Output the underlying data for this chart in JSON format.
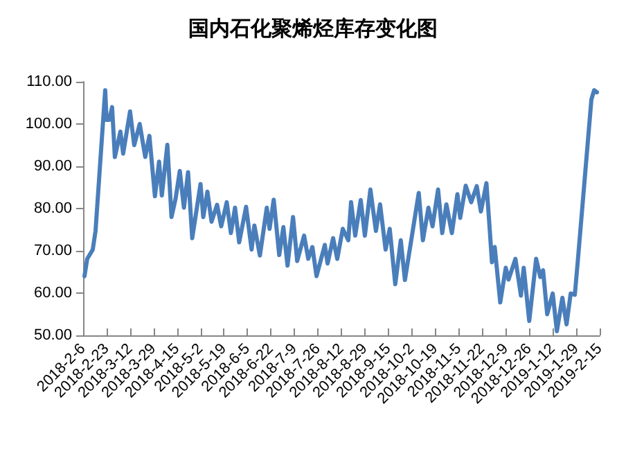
{
  "chart_data": {
    "type": "line",
    "title": "国内石化聚烯烃库存变化图",
    "x": [
      "2018-02-07",
      "2018-02-09",
      "2018-02-13",
      "2018-02-15",
      "2018-02-22",
      "2018-02-23",
      "2018-02-25",
      "2018-02-27",
      "2018-03-01",
      "2018-03-05",
      "2018-03-07",
      "2018-03-12",
      "2018-03-15",
      "2018-03-19",
      "2018-03-23",
      "2018-03-26",
      "2018-03-30",
      "2018-04-02",
      "2018-04-04",
      "2018-04-08",
      "2018-04-11",
      "2018-04-14",
      "2018-04-17",
      "2018-04-20",
      "2018-04-23",
      "2018-04-26",
      "2018-05-02",
      "2018-05-04",
      "2018-05-07",
      "2018-05-10",
      "2018-05-14",
      "2018-05-17",
      "2018-05-21",
      "2018-05-24",
      "2018-05-27",
      "2018-05-30",
      "2018-06-04",
      "2018-06-08",
      "2018-06-10",
      "2018-06-14",
      "2018-06-19",
      "2018-06-21",
      "2018-06-24",
      "2018-06-28",
      "2018-07-01",
      "2018-07-04",
      "2018-07-08",
      "2018-07-11",
      "2018-07-16",
      "2018-07-19",
      "2018-07-22",
      "2018-07-25",
      "2018-07-31",
      "2018-08-02",
      "2018-08-06",
      "2018-08-09",
      "2018-08-13",
      "2018-08-17",
      "2018-08-19",
      "2018-08-22",
      "2018-08-26",
      "2018-08-29",
      "2018-09-02",
      "2018-09-06",
      "2018-09-09",
      "2018-09-13",
      "2018-09-16",
      "2018-09-20",
      "2018-09-24",
      "2018-09-27",
      "2018-10-07",
      "2018-10-10",
      "2018-10-14",
      "2018-10-17",
      "2018-10-21",
      "2018-10-24",
      "2018-10-27",
      "2018-10-31",
      "2018-11-04",
      "2018-11-06",
      "2018-11-10",
      "2018-11-14",
      "2018-11-18",
      "2018-11-21",
      "2018-11-25",
      "2018-11-27",
      "2018-11-29",
      "2018-12-01",
      "2018-12-05",
      "2018-12-09",
      "2018-12-11",
      "2018-12-16",
      "2018-12-20",
      "2018-12-22",
      "2018-12-26",
      "2018-12-31",
      "2019-01-03",
      "2019-01-05",
      "2019-01-08",
      "2019-01-12",
      "2019-01-15",
      "2019-01-19",
      "2019-01-22",
      "2019-01-25",
      "2019-01-28",
      "2019-01-30",
      "2019-02-09",
      "2019-02-11",
      "2019-02-13"
    ],
    "series": [
      {
        "color": "#4a7ebb",
        "values": [
          64.0,
          68.1,
          70.3,
          74.7,
          108.0,
          101,
          101,
          104,
          92.2,
          98.2,
          93,
          103,
          95,
          100,
          92.2,
          97.2,
          82.9,
          91.1,
          83.1,
          95.1,
          78,
          82.4,
          88.9,
          80.2,
          88.6,
          73.0,
          85.8,
          78,
          84,
          76.9,
          80.9,
          75.8,
          81.5,
          74.2,
          80.2,
          72.0,
          80.4,
          70.3,
          76,
          68.9,
          80.2,
          75.2,
          82.1,
          69,
          75.6,
          66.5,
          78,
          67.6,
          73.6,
          68.1,
          70.9,
          64.0,
          71.4,
          67.0,
          73.0,
          68.1,
          75.2,
          72.5,
          81.5,
          73.6,
          82.0,
          73.6,
          84.5,
          74.7,
          81.0,
          70.3,
          75.2,
          62.1,
          72.5,
          63.1,
          83.7,
          72.5,
          80.2,
          75.8,
          84.5,
          74.2,
          81.0,
          74.2,
          83.4,
          77.8,
          85.4,
          81.5,
          85.3,
          79.3,
          86.0,
          76.9,
          67.3,
          70.9,
          57.8,
          66.0,
          63.2,
          68.1,
          59.4,
          66.0,
          53.4,
          68.1,
          63.8,
          65.4,
          55.0,
          59.9,
          51.0,
          58.9,
          52.6,
          59.9,
          59.6,
          67.0,
          105.8,
          108.0,
          107.5
        ]
      }
    ],
    "xlim": [
      "2018-02-06",
      "2019-02-15"
    ],
    "xticks": [
      {
        "value": "2018-02-06",
        "label": "2018-2-6"
      },
      {
        "value": "2018-02-23",
        "label": "2018-2-23"
      },
      {
        "value": "2018-03-12",
        "label": "2018-3-12"
      },
      {
        "value": "2018-03-29",
        "label": "2018-3-29"
      },
      {
        "value": "2018-04-15",
        "label": "2018-4-15"
      },
      {
        "value": "2018-05-02",
        "label": "2018-5-2"
      },
      {
        "value": "2018-05-19",
        "label": "2018-5-19"
      },
      {
        "value": "2018-06-05",
        "label": "2018-6-5"
      },
      {
        "value": "2018-06-22",
        "label": "2018-6-22"
      },
      {
        "value": "2018-07-09",
        "label": "2018-7-9"
      },
      {
        "value": "2018-07-26",
        "label": "2018-7-26"
      },
      {
        "value": "2018-08-12",
        "label": "2018-8-12"
      },
      {
        "value": "2018-08-29",
        "label": "2018-8-29"
      },
      {
        "value": "2018-09-15",
        "label": "2018-9-15"
      },
      {
        "value": "2018-10-02",
        "label": "2018-10-2"
      },
      {
        "value": "2018-10-19",
        "label": "2018-10-19"
      },
      {
        "value": "2018-11-05",
        "label": "2018-11-5"
      },
      {
        "value": "2018-11-22",
        "label": "2018-11-22"
      },
      {
        "value": "2018-12-09",
        "label": "2018-12-9"
      },
      {
        "value": "2018-12-26",
        "label": "2018-12-26"
      },
      {
        "value": "2019-01-12",
        "label": "2019-1-12"
      },
      {
        "value": "2019-01-29",
        "label": "2019-1-29"
      },
      {
        "value": "2019-02-15",
        "label": "2019-2-15"
      }
    ],
    "ylim": [
      50,
      110
    ],
    "yticks": [
      {
        "value": 50,
        "label": "50.00"
      },
      {
        "value": 60,
        "label": "60.00"
      },
      {
        "value": 70,
        "label": "70.00"
      },
      {
        "value": 80,
        "label": "80.00"
      },
      {
        "value": 90,
        "label": "90.00"
      },
      {
        "value": 100,
        "label": "100.00"
      },
      {
        "value": 110,
        "label": "110.00"
      }
    ],
    "marker": "none",
    "line_style": "solid"
  }
}
